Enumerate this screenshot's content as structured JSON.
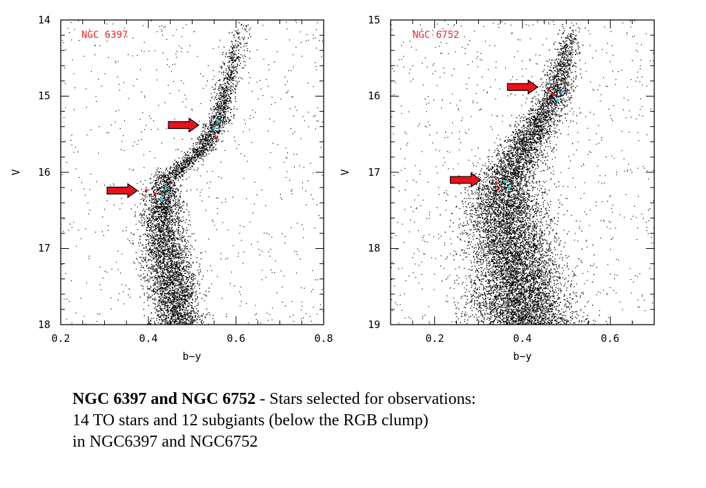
{
  "chart_data": [
    {
      "type": "scatter",
      "title": "NGC 6397",
      "xlabel": "b−y",
      "ylabel": "V",
      "xlim": [
        0.2,
        0.8
      ],
      "ylim": [
        14,
        18
      ],
      "y_inverted": true,
      "xticks": [
        "0.2",
        "0.4",
        "0.6",
        "0.8"
      ],
      "yticks": [
        "14",
        "15",
        "16",
        "17",
        "18"
      ],
      "sequence": [
        {
          "v": 18.0,
          "c": 0.47,
          "w": 0.03
        },
        {
          "v": 17.5,
          "c": 0.455,
          "w": 0.028
        },
        {
          "v": 17.0,
          "c": 0.44,
          "w": 0.026
        },
        {
          "v": 16.5,
          "c": 0.43,
          "w": 0.022
        },
        {
          "v": 16.1,
          "c": 0.44,
          "w": 0.018
        },
        {
          "v": 15.9,
          "c": 0.48,
          "w": 0.015
        },
        {
          "v": 15.7,
          "c": 0.52,
          "w": 0.014
        },
        {
          "v": 15.3,
          "c": 0.56,
          "w": 0.013
        },
        {
          "v": 14.8,
          "c": 0.58,
          "w": 0.012
        },
        {
          "v": 14.0,
          "c": 0.615,
          "w": 0.012
        }
      ],
      "selected_red": [
        {
          "x": 0.395,
          "y": 16.24
        },
        {
          "x": 0.415,
          "y": 16.28
        },
        {
          "x": 0.555,
          "y": 15.55
        }
      ],
      "selected_cyan": [
        {
          "x": 0.43,
          "y": 16.35
        },
        {
          "x": 0.44,
          "y": 16.22
        },
        {
          "x": 0.55,
          "y": 15.42
        },
        {
          "x": 0.56,
          "y": 15.33
        }
      ],
      "arrows": [
        {
          "x": 0.515,
          "y": 15.38
        },
        {
          "x": 0.375,
          "y": 16.24
        }
      ],
      "colors": {
        "field": "#000000",
        "red": "#e8131b",
        "cyan": "#1fd6e0",
        "title": "#ee2a2a"
      }
    },
    {
      "type": "scatter",
      "title": "NGC 6752",
      "xlabel": "b−y",
      "ylabel": "V",
      "xlim": [
        0.1,
        0.7
      ],
      "ylim": [
        15,
        19
      ],
      "y_inverted": true,
      "xticks": [
        "0.2",
        "0.4",
        "0.6"
      ],
      "yticks": [
        "15",
        "16",
        "17",
        "18",
        "19"
      ],
      "sequence": [
        {
          "v": 19.0,
          "c": 0.405,
          "w": 0.06
        },
        {
          "v": 18.5,
          "c": 0.39,
          "w": 0.055
        },
        {
          "v": 18.0,
          "c": 0.375,
          "w": 0.05
        },
        {
          "v": 17.5,
          "c": 0.36,
          "w": 0.045
        },
        {
          "v": 17.1,
          "c": 0.36,
          "w": 0.035
        },
        {
          "v": 16.8,
          "c": 0.39,
          "w": 0.028
        },
        {
          "v": 16.4,
          "c": 0.43,
          "w": 0.022
        },
        {
          "v": 16.0,
          "c": 0.47,
          "w": 0.018
        },
        {
          "v": 15.5,
          "c": 0.495,
          "w": 0.015
        },
        {
          "v": 15.0,
          "c": 0.515,
          "w": 0.012
        }
      ],
      "selected_red": [
        {
          "x": 0.34,
          "y": 17.15
        },
        {
          "x": 0.345,
          "y": 17.22
        },
        {
          "x": 0.46,
          "y": 15.92
        },
        {
          "x": 0.47,
          "y": 15.98
        }
      ],
      "selected_cyan": [
        {
          "x": 0.36,
          "y": 17.12
        },
        {
          "x": 0.37,
          "y": 17.2
        },
        {
          "x": 0.48,
          "y": 16.05
        },
        {
          "x": 0.49,
          "y": 15.95
        }
      ],
      "arrows": [
        {
          "x": 0.435,
          "y": 15.88
        },
        {
          "x": 0.305,
          "y": 17.1
        }
      ],
      "colors": {
        "field": "#000000",
        "red": "#e8131b",
        "cyan": "#1fd6e0",
        "title": "#ee2a2a"
      }
    }
  ],
  "caption": {
    "bold": "NGC 6397 and NGC 6752",
    "line1_rest": " - Stars selected for observations:",
    "line2": "14 TO stars and 12 subgiants (below the RGB clump)",
    "line3": "in NGC6397 and NGC6752"
  }
}
